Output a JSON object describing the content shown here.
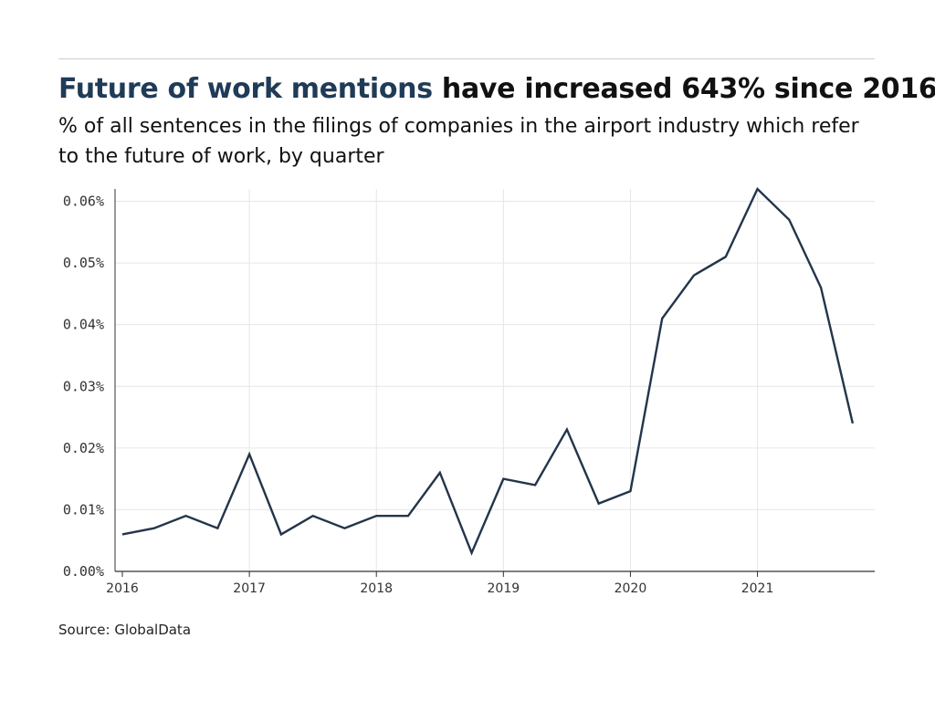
{
  "header": {
    "title_highlight": "Future of work mentions",
    "title_rest": " have increased 643% since 2016",
    "subtitle": "% of all sentences in the filings of companies in the airport industry which refer to the future of work, by quarter"
  },
  "footer": {
    "source": "Source: GlobalData"
  },
  "colors": {
    "line": "#23354a",
    "grid": "#e6e6e6",
    "title_highlight": "#1f3b57"
  },
  "chart_data": {
    "type": "line",
    "title": "Future of work mentions have increased 643% since 2016",
    "xlabel": "",
    "ylabel": "",
    "x_tick_labels": [
      "2016",
      "2017",
      "2018",
      "2019",
      "2020",
      "2021"
    ],
    "y_tick_labels": [
      "0.00%",
      "0.01%",
      "0.02%",
      "0.03%",
      "0.04%",
      "0.05%",
      "0.06%"
    ],
    "ylim": [
      0,
      0.062
    ],
    "xlim": [
      2016,
      2021.83
    ],
    "grid": true,
    "series": [
      {
        "x": [
          2016.0,
          2016.25,
          2016.5,
          2016.75,
          2017.0,
          2017.25,
          2017.5,
          2017.75,
          2018.0,
          2018.25,
          2018.5,
          2018.75,
          2019.0,
          2019.25,
          2019.5,
          2019.75,
          2020.0,
          2020.25,
          2020.5,
          2020.75,
          2021.0,
          2021.25,
          2021.5,
          2021.75
        ],
        "values": [
          0.006,
          0.007,
          0.009,
          0.007,
          0.019,
          0.006,
          0.009,
          0.007,
          0.009,
          0.009,
          0.016,
          0.003,
          0.015,
          0.014,
          0.023,
          0.011,
          0.013,
          0.041,
          0.048,
          0.051,
          0.062,
          0.057,
          0.046,
          0.024
        ]
      }
    ]
  }
}
